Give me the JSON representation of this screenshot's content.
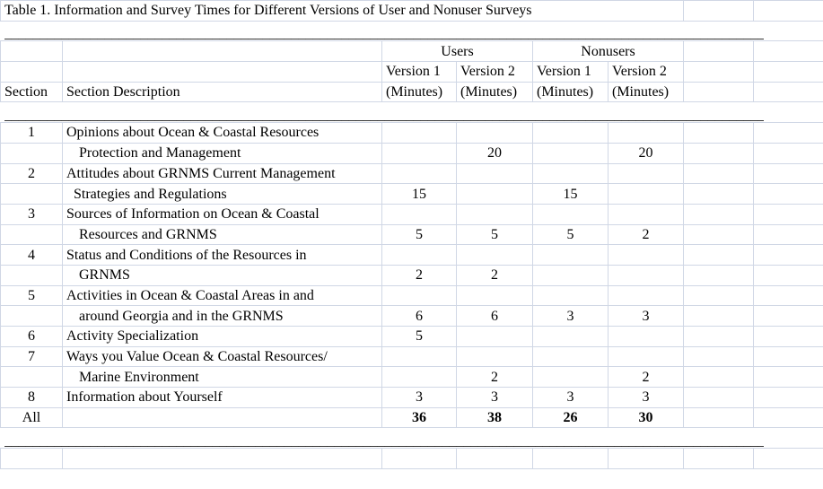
{
  "title": "Table 1.  Information and Survey Times for Different Versions of User and Nonuser Surveys",
  "rule": "______________________________________________________________________________________________________________________________",
  "groups": {
    "users": "Users",
    "nonusers": "Nonusers"
  },
  "version_labels": [
    "Version 1",
    "Version 2",
    "Version 1",
    "Version 2"
  ],
  "unit_labels": [
    "(Minutes)",
    "(Minutes)",
    "(Minutes)",
    "(Minutes)"
  ],
  "headers": {
    "section": "Section",
    "description": "Section Description"
  },
  "rows": [
    {
      "section": "1",
      "desc": "Opinions about Ocean & Coastal Resources",
      "v": [
        "",
        "",
        "",
        ""
      ]
    },
    {
      "section": "",
      "desc": "Protection and Management",
      "v": [
        "",
        "20",
        "",
        "20"
      ]
    },
    {
      "section": "2",
      "desc": "Attitudes about GRNMS Current Management",
      "v": [
        "",
        "",
        "",
        ""
      ]
    },
    {
      "section": "",
      "desc": "Strategies and Regulations",
      "v": [
        "15",
        "",
        "15",
        ""
      ]
    },
    {
      "section": "3",
      "desc": "Sources of Information on Ocean & Coastal",
      "v": [
        "",
        "",
        "",
        ""
      ]
    },
    {
      "section": "",
      "desc": "Resources and GRNMS",
      "v": [
        "5",
        "5",
        "5",
        "2"
      ]
    },
    {
      "section": "4",
      "desc": "Status and Conditions of the Resources in",
      "v": [
        "",
        "",
        "",
        ""
      ]
    },
    {
      "section": "",
      "desc": "GRNMS",
      "v": [
        "2",
        "2",
        "",
        ""
      ]
    },
    {
      "section": "5",
      "desc": "Activities in Ocean & Coastal Areas in and",
      "v": [
        "",
        "",
        "",
        ""
      ]
    },
    {
      "section": "",
      "desc": "around Georgia and in the GRNMS",
      "v": [
        "6",
        "6",
        "3",
        "3"
      ]
    },
    {
      "section": "6",
      "desc": "Activity Specialization",
      "v": [
        "5",
        "",
        "",
        ""
      ]
    },
    {
      "section": "7",
      "desc": "Ways you Value Ocean & Coastal Resources/",
      "v": [
        "",
        "",
        "",
        ""
      ]
    },
    {
      "section": "",
      "desc": "Marine Environment",
      "v": [
        "",
        "2",
        "",
        "2"
      ]
    },
    {
      "section": "8",
      "desc": "Information about Yourself",
      "v": [
        "3",
        "3",
        "3",
        "3"
      ]
    }
  ],
  "total": {
    "section": "All",
    "v": [
      "36",
      "38",
      "26",
      "30"
    ]
  }
}
